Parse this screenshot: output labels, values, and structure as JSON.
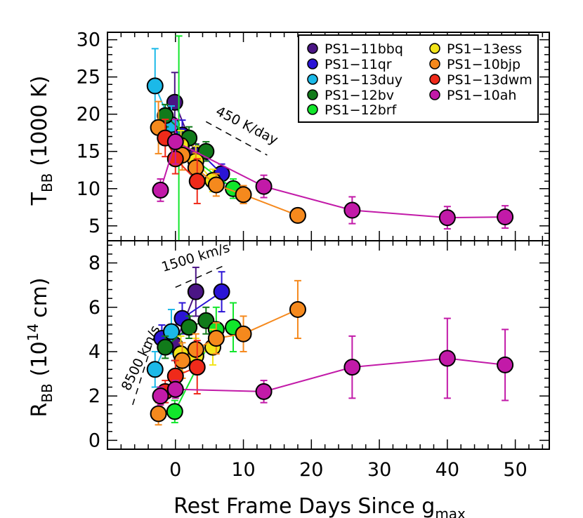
{
  "chart_data": [
    {
      "type": "scatter",
      "panel": "top",
      "ylabel_main": "T",
      "ylabel_sub": "BB",
      "ylabel_suffix": "(1000 K)",
      "ylim": [
        3,
        31
      ],
      "xlim": [
        -10,
        55
      ],
      "yticks": [
        "5",
        "10",
        "15",
        "20",
        "25",
        "30"
      ],
      "annotation": "450 K/day",
      "series": [
        {
          "name": "PS1−11bbq",
          "color": "#4b1585",
          "points": [
            [
              -0.1,
              21.6,
              4.0
            ],
            [
              3.0,
              14.5,
              1.5
            ]
          ]
        },
        {
          "name": "PS1−11qr",
          "color": "#2b14d6",
          "points": [
            [
              1.0,
              17.2,
              2.0
            ],
            [
              6.8,
              12.0,
              1.3
            ]
          ]
        },
        {
          "name": "PS1−13duy",
          "color": "#1bb9e8",
          "points": [
            [
              -3.0,
              23.8,
              5.0
            ],
            [
              -0.6,
              18.6,
              2.5
            ]
          ]
        },
        {
          "name": "PS1−12bv",
          "color": "#117a1a",
          "points": [
            [
              -1.5,
              19.8,
              1.5
            ],
            [
              2.0,
              16.8,
              1.5
            ],
            [
              4.5,
              15.0,
              1.3
            ]
          ]
        },
        {
          "name": "PS1−12brf",
          "color": "#11e62b",
          "points": [
            [
              0.5,
              15.5,
              15.0
            ],
            [
              8.5,
              10.0,
              1.3
            ]
          ]
        },
        {
          "name": "PS1−13ess",
          "color": "#f2e41a",
          "points": [
            [
              0.8,
              15.8,
              2.0
            ],
            [
              3.0,
              13.7,
              2.0
            ],
            [
              5.5,
              11.1,
              1.5
            ]
          ]
        },
        {
          "name": "PS1−10bjp",
          "color": "#f5891d",
          "points": [
            [
              -2.5,
              18.2,
              3.5
            ],
            [
              1.0,
              14.5,
              2.0
            ],
            [
              3.0,
              12.8,
              2.0
            ],
            [
              6.0,
              10.5,
              1.5
            ],
            [
              10.0,
              9.2,
              1.2
            ],
            [
              18.0,
              6.4,
              0.8
            ]
          ]
        },
        {
          "name": "PS1−13dwm",
          "color": "#ef2a1a",
          "points": [
            [
              -1.5,
              16.8,
              2.5
            ],
            [
              0.0,
              14.0,
              2.0
            ],
            [
              3.2,
              11.0,
              3.0
            ]
          ]
        },
        {
          "name": "PS1−10ah",
          "color": "#c21aa8",
          "points": [
            [
              -2.2,
              9.8,
              1.5
            ],
            [
              0.0,
              16.3,
              3.0
            ],
            [
              13.0,
              10.3,
              1.5
            ],
            [
              26.0,
              7.1,
              1.8
            ],
            [
              40.0,
              6.1,
              1.5
            ],
            [
              48.5,
              6.2,
              1.5
            ]
          ]
        }
      ]
    },
    {
      "type": "scatter",
      "panel": "bottom",
      "ylabel_main": "R",
      "ylabel_sub": "BB",
      "ylabel_suffix": "(10",
      "ylabel_sup": "14",
      "ylabel_end": "cm)",
      "xlabel": "Rest Frame Days Since g",
      "xlabel_sub": "max",
      "ylim": [
        -0.4,
        9.0
      ],
      "xlim": [
        -10,
        55
      ],
      "yticks": [
        "0",
        "2",
        "4",
        "6",
        "8"
      ],
      "xticks": [
        "0",
        "10",
        "20",
        "30",
        "40",
        "50"
      ],
      "annotation_a": "8500 km/s",
      "annotation_b": "1500 km/s",
      "series": [
        {
          "name": "PS1−11bbq",
          "color": "#4b1585",
          "points": [
            [
              -0.1,
              4.3,
              0.7
            ],
            [
              3.0,
              6.7,
              1.1
            ]
          ]
        },
        {
          "name": "PS1−11qr",
          "color": "#2b14d6",
          "points": [
            [
              -2.0,
              4.6,
              0.6
            ],
            [
              1.0,
              5.5,
              0.7
            ],
            [
              6.8,
              6.7,
              0.9
            ]
          ]
        },
        {
          "name": "PS1−13duy",
          "color": "#1bb9e8",
          "points": [
            [
              -3.0,
              3.2,
              0.8
            ],
            [
              -0.6,
              4.9,
              1.0
            ]
          ]
        },
        {
          "name": "PS1−12bv",
          "color": "#117a1a",
          "points": [
            [
              -1.5,
              4.2,
              0.5
            ],
            [
              2.0,
              5.1,
              0.5
            ],
            [
              4.5,
              5.4,
              0.6
            ]
          ]
        },
        {
          "name": "PS1−12brf",
          "color": "#11e62b",
          "points": [
            [
              -0.1,
              1.3,
              0.5
            ],
            [
              6.0,
              5.0,
              1.0
            ],
            [
              8.5,
              5.1,
              1.1
            ]
          ]
        },
        {
          "name": "PS1−13ess",
          "color": "#f2e41a",
          "points": [
            [
              0.8,
              3.9,
              0.8
            ],
            [
              3.0,
              3.8,
              0.8
            ],
            [
              5.5,
              4.2,
              0.8
            ]
          ]
        },
        {
          "name": "PS1−10bjp",
          "color": "#f5891d",
          "points": [
            [
              -2.5,
              1.2,
              0.5
            ],
            [
              1.0,
              3.6,
              0.8
            ],
            [
              3.0,
              4.1,
              0.7
            ],
            [
              6.0,
              4.6,
              0.7
            ],
            [
              10.0,
              4.8,
              0.8
            ],
            [
              18.0,
              5.9,
              1.3
            ]
          ]
        },
        {
          "name": "PS1−13dwm",
          "color": "#ef2a1a",
          "points": [
            [
              -1.5,
              2.2,
              0.5
            ],
            [
              0.0,
              2.9,
              0.7
            ],
            [
              3.2,
              3.3,
              1.2
            ]
          ]
        },
        {
          "name": "PS1−10ah",
          "color": "#c21aa8",
          "points": [
            [
              -2.2,
              2.0,
              0.4
            ],
            [
              0.0,
              2.3,
              0.4
            ],
            [
              13.0,
              2.2,
              0.5
            ],
            [
              26.0,
              3.3,
              1.4
            ],
            [
              40.0,
              3.7,
              1.8
            ],
            [
              48.5,
              3.4,
              1.6
            ]
          ]
        }
      ]
    }
  ],
  "legend": {
    "col1": [
      "PS1−11bbq",
      "PS1−11qr",
      "PS1−13duy",
      "PS1−12bv",
      "PS1−12brf"
    ],
    "col2": [
      "PS1−13ess",
      "PS1−10bjp",
      "PS1−13dwm",
      "PS1−10ah"
    ]
  }
}
